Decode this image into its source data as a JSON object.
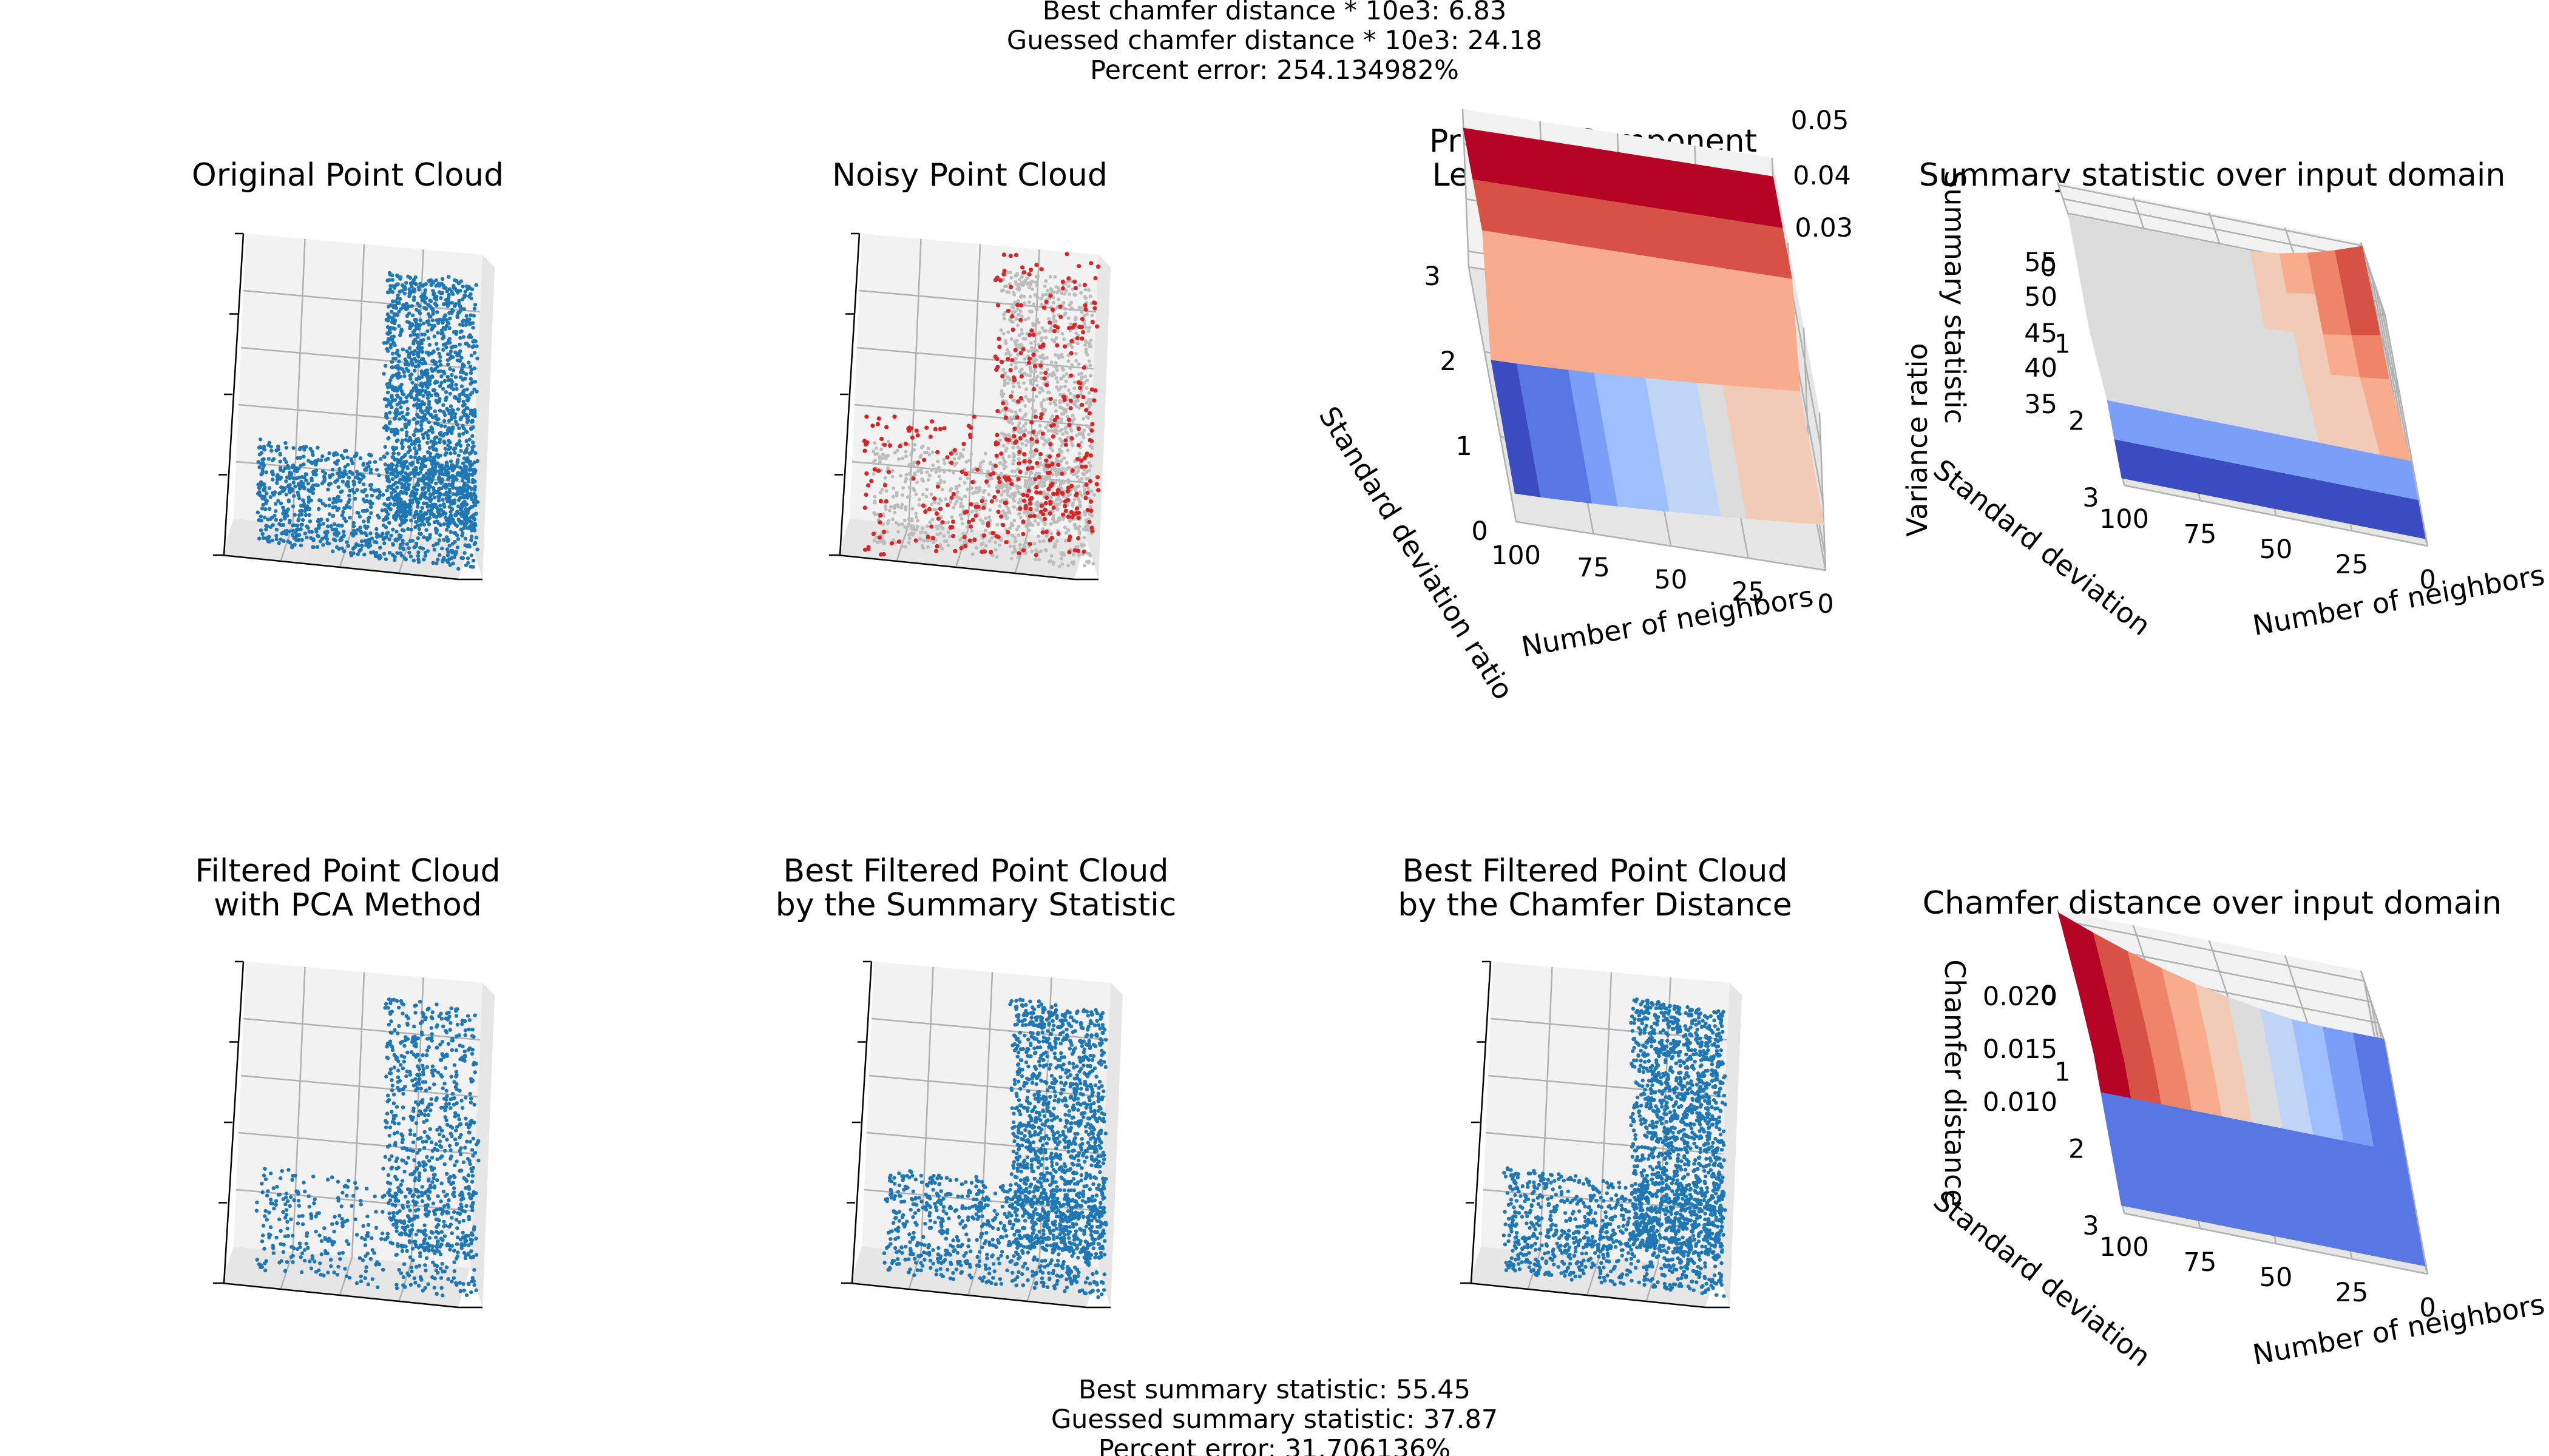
{
  "header": {
    "line1": "Best chamfer distance * 10e3: 6.83",
    "line2": "Guessed chamfer distance * 10e3: 24.18",
    "line3": "Percent error: 254.134982%"
  },
  "footer": {
    "line1": "Best summary statistic: 55.45",
    "line2": "Guessed summary statistic: 37.87",
    "line3": "Percent error: 31.706136%"
  },
  "colors": {
    "points": "#1f77b4",
    "noise_points": "#d62728",
    "background_points": "#bdbdbd",
    "colormap": "coolwarm"
  },
  "chart_data": [
    {
      "id": "original",
      "type": "scatter",
      "dimensions": 3,
      "title_lines": [
        "Original Point Cloud"
      ],
      "shape": "L-shaped point cloud",
      "color": "#1f77b4"
    },
    {
      "id": "noisy",
      "type": "scatter",
      "dimensions": 3,
      "title_lines": [
        "Noisy Point Cloud"
      ],
      "shape": "L-shaped point cloud with noise",
      "color": "#bdbdbd",
      "noise_color": "#d62728"
    },
    {
      "id": "variance",
      "type": "surface",
      "dimensions": 3,
      "title_lines": [
        "Principal Component",
        "Least Variance Ratio"
      ],
      "xlabel": "Number of neighbors",
      "ylabel": "Standard deviation ratio",
      "zlabel": "Variance ratio",
      "x_ticks": [
        "100",
        "75",
        "50",
        "25",
        "0"
      ],
      "y_ticks": [
        "0",
        "1",
        "2",
        "3"
      ],
      "z_ticks": [
        "0.03",
        "0.04",
        "0.05"
      ],
      "xlim": [
        0,
        100
      ],
      "ylim": [
        0,
        3
      ],
      "zlim": [
        0.028,
        0.056
      ],
      "colormap": "coolwarm"
    },
    {
      "id": "summary",
      "type": "surface",
      "dimensions": 3,
      "title_lines": [
        "Summary statistic over input domain"
      ],
      "xlabel": "Number of neighbors",
      "ylabel": "Standard deviation",
      "zlabel": "Summary statistic",
      "x_ticks": [
        "100",
        "75",
        "50",
        "25",
        "0"
      ],
      "y_ticks": [
        "0",
        "1",
        "2",
        "3"
      ],
      "z_ticks": [
        "35",
        "40",
        "45",
        "50",
        "55"
      ],
      "xlim": [
        0,
        100
      ],
      "ylim": [
        0,
        3
      ],
      "zlim": [
        31,
        57
      ],
      "colormap": "coolwarm"
    },
    {
      "id": "filtered_pca",
      "type": "scatter",
      "dimensions": 3,
      "title_lines": [
        "Filtered Point Cloud",
        " with PCA Method"
      ],
      "color": "#1f77b4"
    },
    {
      "id": "best_summary",
      "type": "scatter",
      "dimensions": 3,
      "title_lines": [
        "Best Filtered Point Cloud",
        "by the Summary Statistic"
      ],
      "color": "#1f77b4"
    },
    {
      "id": "best_chamfer",
      "type": "scatter",
      "dimensions": 3,
      "title_lines": [
        "Best Filtered Point Cloud",
        "by the Chamfer Distance"
      ],
      "color": "#1f77b4"
    },
    {
      "id": "chamfer",
      "type": "surface",
      "dimensions": 3,
      "title_lines": [
        "Chamfer distance over input domain"
      ],
      "xlabel": "Number of neighbors",
      "ylabel": "Standard deviation",
      "zlabel": "Chamfer distance",
      "x_ticks": [
        "100",
        "75",
        "50",
        "25",
        "0"
      ],
      "y_ticks": [
        "0",
        "1",
        "2",
        "3"
      ],
      "z_ticks": [
        "0.010",
        "0.015",
        "0.020"
      ],
      "xlim": [
        0,
        100
      ],
      "ylim": [
        0,
        3
      ],
      "zlim": [
        0.007,
        0.024
      ],
      "colormap": "coolwarm"
    }
  ]
}
